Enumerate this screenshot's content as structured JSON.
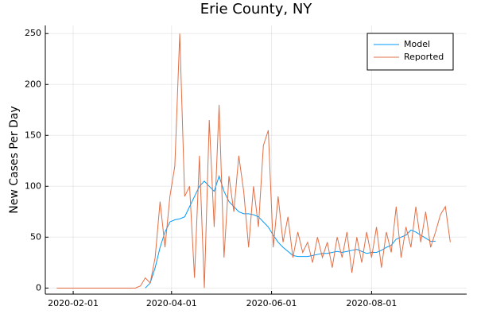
{
  "chart_data": {
    "type": "line",
    "title": "Erie County, NY",
    "y_label": "New Cases Per Day",
    "x": [
      "2020-01-22",
      "2020-01-25",
      "2020-01-28",
      "2020-01-31",
      "2020-02-03",
      "2020-02-06",
      "2020-02-09",
      "2020-02-12",
      "2020-02-15",
      "2020-02-18",
      "2020-02-21",
      "2020-02-24",
      "2020-02-27",
      "2020-03-01",
      "2020-03-04",
      "2020-03-07",
      "2020-03-10",
      "2020-03-13",
      "2020-03-16",
      "2020-03-19",
      "2020-03-22",
      "2020-03-25",
      "2020-03-28",
      "2020-03-31",
      "2020-04-03",
      "2020-04-06",
      "2020-04-09",
      "2020-04-12",
      "2020-04-15",
      "2020-04-18",
      "2020-04-21",
      "2020-04-24",
      "2020-04-27",
      "2020-04-30",
      "2020-05-03",
      "2020-05-06",
      "2020-05-09",
      "2020-05-12",
      "2020-05-15",
      "2020-05-18",
      "2020-05-21",
      "2020-05-24",
      "2020-05-27",
      "2020-05-30",
      "2020-06-02",
      "2020-06-05",
      "2020-06-08",
      "2020-06-11",
      "2020-06-14",
      "2020-06-17",
      "2020-06-20",
      "2020-06-23",
      "2020-06-26",
      "2020-06-29",
      "2020-07-02",
      "2020-07-05",
      "2020-07-08",
      "2020-07-11",
      "2020-07-14",
      "2020-07-17",
      "2020-07-20",
      "2020-07-23",
      "2020-07-26",
      "2020-07-29",
      "2020-08-01",
      "2020-08-04",
      "2020-08-07",
      "2020-08-10",
      "2020-08-13",
      "2020-08-16",
      "2020-08-19",
      "2020-08-22",
      "2020-08-25",
      "2020-08-28",
      "2020-08-31",
      "2020-09-03",
      "2020-09-06",
      "2020-09-09",
      "2020-09-12",
      "2020-09-15",
      "2020-09-18"
    ],
    "series": [
      {
        "name": "Model",
        "color": "#009af9",
        "values": [
          null,
          null,
          null,
          null,
          null,
          null,
          null,
          null,
          null,
          null,
          null,
          null,
          null,
          null,
          null,
          null,
          null,
          null,
          0,
          5,
          20,
          40,
          55,
          65,
          67,
          68,
          70,
          80,
          90,
          100,
          105,
          100,
          95,
          110,
          95,
          85,
          80,
          75,
          73,
          73,
          72,
          70,
          65,
          60,
          52,
          45,
          40,
          36,
          32,
          31,
          31,
          31,
          32,
          33,
          34,
          34,
          35,
          36,
          35,
          36,
          37,
          38,
          36,
          34,
          35,
          35,
          37,
          40,
          42,
          48,
          50,
          52,
          57,
          55,
          52,
          49,
          46,
          46,
          null,
          null,
          null
        ]
      },
      {
        "name": "Reported",
        "color": "#e26f46",
        "values": [
          0,
          0,
          0,
          0,
          0,
          0,
          0,
          0,
          0,
          0,
          0,
          0,
          0,
          0,
          0,
          0,
          0,
          2,
          10,
          5,
          30,
          85,
          40,
          90,
          120,
          250,
          90,
          100,
          10,
          130,
          0,
          165,
          60,
          180,
          30,
          110,
          75,
          130,
          95,
          40,
          100,
          60,
          140,
          155,
          40,
          90,
          45,
          70,
          30,
          55,
          35,
          45,
          25,
          50,
          30,
          45,
          20,
          50,
          30,
          55,
          15,
          50,
          25,
          55,
          30,
          60,
          20,
          55,
          35,
          80,
          30,
          60,
          40,
          80,
          45,
          75,
          40,
          55,
          72,
          80,
          45
        ]
      }
    ],
    "xlim": [
      "2020-01-15",
      "2020-09-28"
    ],
    "xticks": [
      "2020-02-01",
      "2020-04-01",
      "2020-06-01",
      "2020-08-01"
    ],
    "ylim": [
      -6,
      258
    ],
    "yticks": [
      0,
      50,
      100,
      150,
      200,
      250
    ],
    "grid": true,
    "legend": "top-right"
  }
}
